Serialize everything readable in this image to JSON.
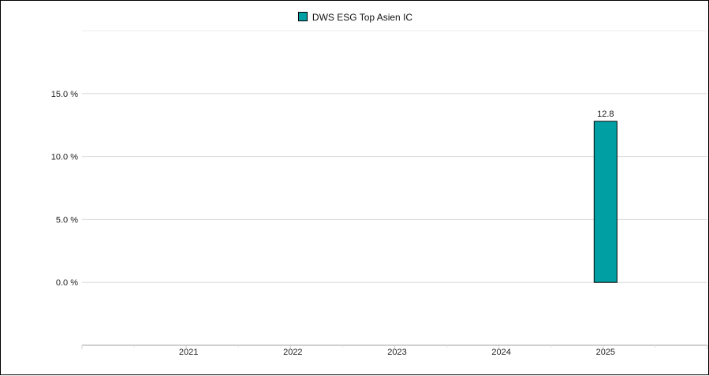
{
  "chart_data": {
    "type": "bar",
    "title": "",
    "xlabel": "",
    "ylabel": "",
    "categories": [
      "2021",
      "2022",
      "2023",
      "2024",
      "2025"
    ],
    "series": [
      {
        "name": "DWS ESG Top Asien IC",
        "color": "#009fa3",
        "values": [
          null,
          null,
          null,
          null,
          12.8
        ],
        "data_labels": [
          "",
          "",
          "",
          "",
          "12.8"
        ]
      }
    ],
    "ylim": [
      -5,
      20
    ],
    "y_ticks": [
      {
        "value": 15,
        "label": "15.0 %"
      },
      {
        "value": 10,
        "label": "10.0 %"
      },
      {
        "value": 5,
        "label": "5.0 %"
      },
      {
        "value": 0,
        "label": "0.0 %"
      }
    ],
    "grid": true,
    "legend_position": "top-center"
  }
}
